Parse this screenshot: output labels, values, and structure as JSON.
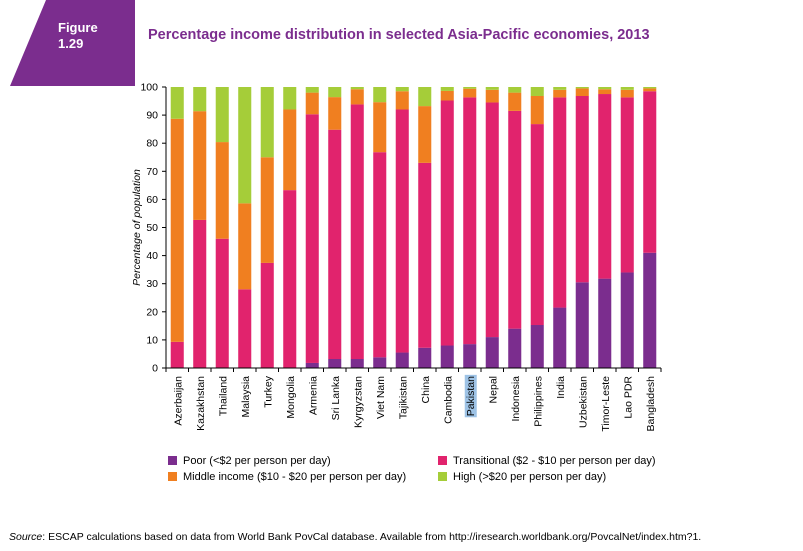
{
  "badge": {
    "line1": "Figure",
    "line2": "1.29",
    "color": "#7b2d8e"
  },
  "title": "Percentage income distribution in selected Asia-Pacific economies, 2013",
  "chart_data": {
    "type": "bar",
    "stacked": true,
    "categories": [
      "Azerbaijan",
      "Kazakhstan",
      "Thailand",
      "Malaysia",
      "Turkey",
      "Mongolia",
      "Armenia",
      "Sri Lanka",
      "Kyrgyzstan",
      "Viet Nam",
      "Tajikistan",
      "China",
      "Cambodia",
      "Pakistan",
      "Nepal",
      "Indonesia",
      "Philippines",
      "India",
      "Uzbekistan",
      "Timor-Leste",
      "Lao PDR",
      "Bangladesh"
    ],
    "highlighted_category": "Pakistan",
    "ylabel": "Percentage of population",
    "ylim": [
      0,
      100
    ],
    "yticks": [
      0,
      10,
      20,
      30,
      40,
      50,
      60,
      70,
      80,
      90,
      100
    ],
    "grid": false,
    "legend_position": "bottom",
    "series": [
      {
        "name": "Poor   (<$2 per person per day)",
        "color": "#7b2d8e",
        "values": [
          0,
          0,
          0,
          0,
          0,
          0,
          1.8,
          3.2,
          3.2,
          3.8,
          5.5,
          7.2,
          8.0,
          8.5,
          11.0,
          14.0,
          15.3,
          21.5,
          30.5,
          31.8,
          34.0,
          41.0
        ]
      },
      {
        "name": "Transitional ($2 - $10 per person per day)",
        "color": "#e1236d",
        "values": [
          9.3,
          52.7,
          46.0,
          28.0,
          37.4,
          63.3,
          88.5,
          81.6,
          90.6,
          73.0,
          86.5,
          65.8,
          87.2,
          87.8,
          83.5,
          77.5,
          71.5,
          74.8,
          66.3,
          65.7,
          62.3,
          57.5
        ]
      },
      {
        "name": "Middle income ($10 - $20 per person per day)",
        "color": "#f07f20",
        "values": [
          79.4,
          38.7,
          34.4,
          30.6,
          37.6,
          28.7,
          7.7,
          11.6,
          5.4,
          17.8,
          6.5,
          20.2,
          3.4,
          3.1,
          4.5,
          6.5,
          10.0,
          2.7,
          2.7,
          1.7,
          2.7,
          1.0
        ]
      },
      {
        "name": "High   (>$20 per person per day)",
        "color": "#a5cd39",
        "values": [
          11.3,
          8.6,
          19.6,
          41.4,
          25.0,
          8.0,
          2.0,
          3.6,
          0.8,
          5.4,
          1.5,
          6.8,
          1.4,
          0.6,
          1.0,
          2.0,
          3.2,
          1.0,
          0.5,
          0.8,
          1.0,
          0.5
        ]
      }
    ]
  },
  "source": {
    "label": "Source",
    "text": ":  ESCAP  calculations  based  on  data  from  World  Bank  PovCal  database.  Available  from  http://iresearch.worldbank.org/PovcalNet/index.htm?1."
  }
}
